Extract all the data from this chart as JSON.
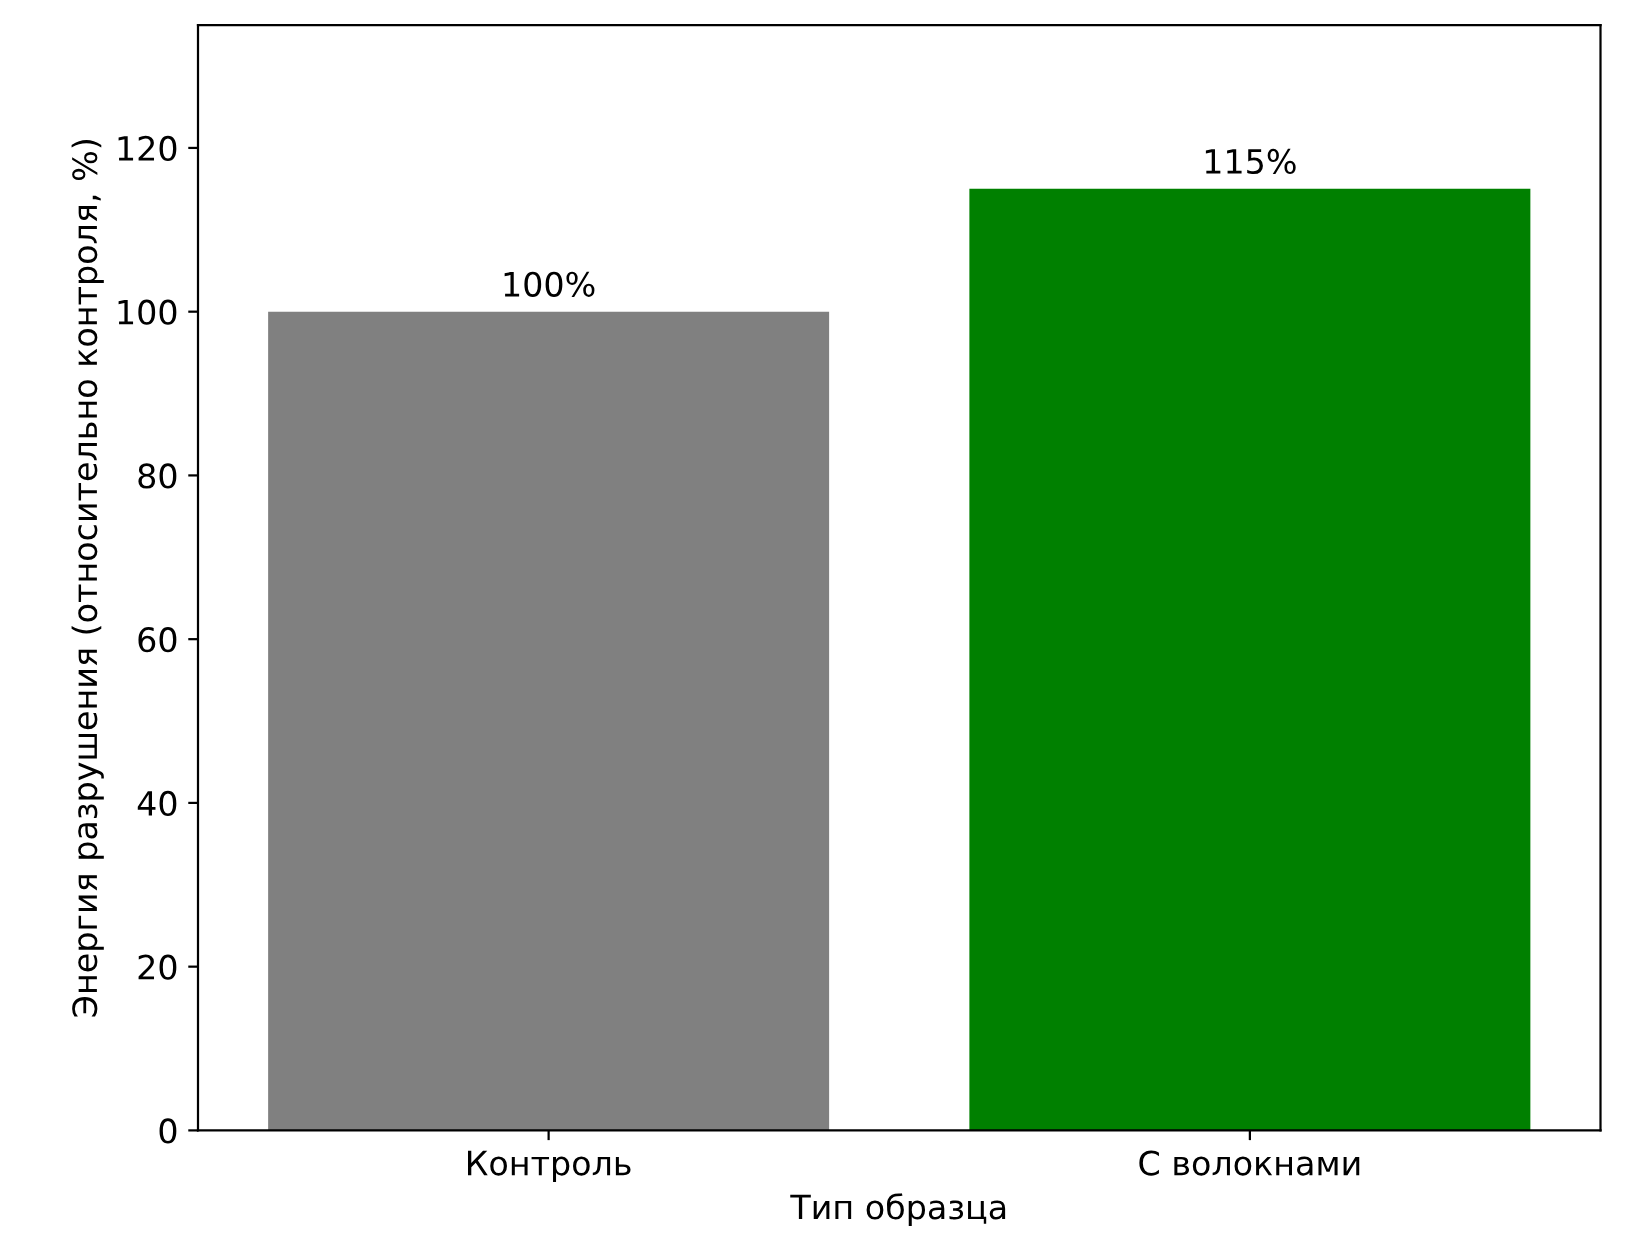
{
  "chart_data": {
    "type": "bar",
    "xlabel": "Тип образца",
    "ylabel": "Энергия разрушения (относительно контроля, %)",
    "categories": [
      "Контроль",
      "С волокнами"
    ],
    "values": [
      100,
      115
    ],
    "colors": [
      "#808080",
      "#008000"
    ],
    "value_labels": [
      "100%",
      "115%"
    ],
    "ylim": [
      0,
      135
    ],
    "yticks": [
      0,
      20,
      40,
      60,
      80,
      100,
      120
    ]
  }
}
